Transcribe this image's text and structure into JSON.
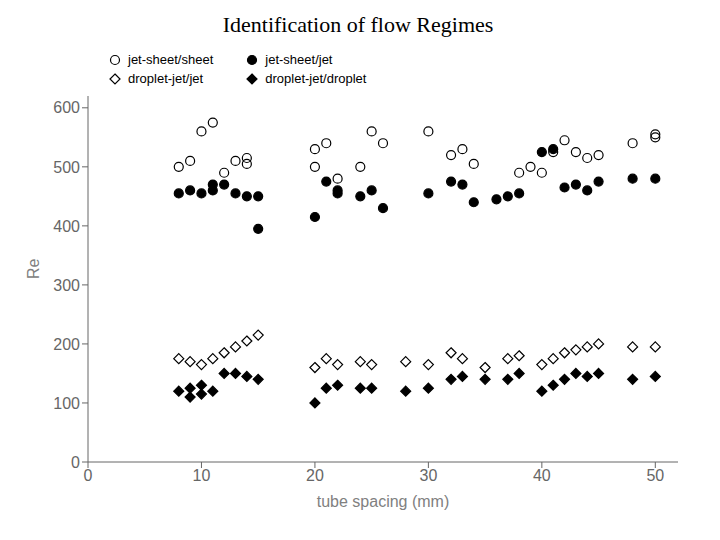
{
  "chart_data": {
    "type": "scatter",
    "title": "Identification of flow Regimes",
    "xlabel": "tube spacing (mm)",
    "ylabel": "Re",
    "xlim": [
      0,
      52
    ],
    "ylim": [
      0,
      620
    ],
    "xticks": [
      0,
      10,
      20,
      30,
      40,
      50
    ],
    "yticks": [
      0,
      100,
      200,
      300,
      400,
      500,
      600
    ],
    "grid": false,
    "legend": "top",
    "series": [
      {
        "name": "jet-sheet/sheet",
        "color": "#000000",
        "marker": "open_circle",
        "x": [
          8,
          9,
          10,
          11,
          12,
          13,
          14,
          14,
          20,
          20,
          21,
          22,
          24,
          25,
          26,
          30,
          32,
          33,
          34,
          38,
          39,
          40,
          41,
          42,
          43,
          44,
          45,
          48,
          50,
          50
        ],
        "values": [
          500,
          510,
          560,
          575,
          490,
          510,
          505,
          515,
          500,
          530,
          540,
          480,
          500,
          560,
          540,
          560,
          520,
          530,
          505,
          490,
          500,
          490,
          525,
          545,
          525,
          515,
          520,
          540,
          550,
          555
        ]
      },
      {
        "name": "jet-sheet/jet",
        "color": "#000000",
        "marker": "circle",
        "x": [
          8,
          9,
          10,
          11,
          11,
          12,
          13,
          14,
          15,
          15,
          20,
          21,
          22,
          22,
          24,
          25,
          26,
          30,
          32,
          33,
          34,
          36,
          37,
          38,
          40,
          41,
          42,
          43,
          44,
          45,
          48,
          50
        ],
        "values": [
          455,
          460,
          455,
          460,
          470,
          470,
          455,
          450,
          395,
          450,
          415,
          475,
          455,
          460,
          450,
          460,
          430,
          455,
          475,
          470,
          440,
          445,
          450,
          455,
          525,
          530,
          465,
          470,
          460,
          475,
          480,
          480
        ]
      },
      {
        "name": "droplet-jet/jet",
        "color": "#000000",
        "marker": "open_diamond",
        "x": [
          8,
          9,
          10,
          11,
          12,
          13,
          14,
          15,
          20,
          21,
          22,
          24,
          25,
          28,
          30,
          32,
          33,
          35,
          37,
          38,
          40,
          41,
          42,
          43,
          44,
          45,
          48,
          50
        ],
        "values": [
          175,
          170,
          165,
          175,
          185,
          195,
          205,
          215,
          160,
          175,
          165,
          170,
          165,
          170,
          165,
          185,
          175,
          160,
          175,
          180,
          165,
          175,
          185,
          190,
          195,
          200,
          195,
          195
        ]
      },
      {
        "name": "droplet-jet/droplet",
        "color": "#000000",
        "marker": "diamond",
        "x": [
          8,
          9,
          9,
          10,
          10,
          11,
          12,
          13,
          14,
          15,
          20,
          21,
          22,
          24,
          25,
          28,
          30,
          32,
          33,
          35,
          37,
          38,
          40,
          41,
          42,
          43,
          44,
          45,
          48,
          50
        ],
        "values": [
          120,
          110,
          125,
          115,
          130,
          120,
          150,
          150,
          145,
          140,
          100,
          125,
          130,
          125,
          125,
          120,
          125,
          140,
          145,
          140,
          140,
          150,
          120,
          130,
          140,
          150,
          145,
          150,
          140,
          145
        ]
      }
    ]
  }
}
